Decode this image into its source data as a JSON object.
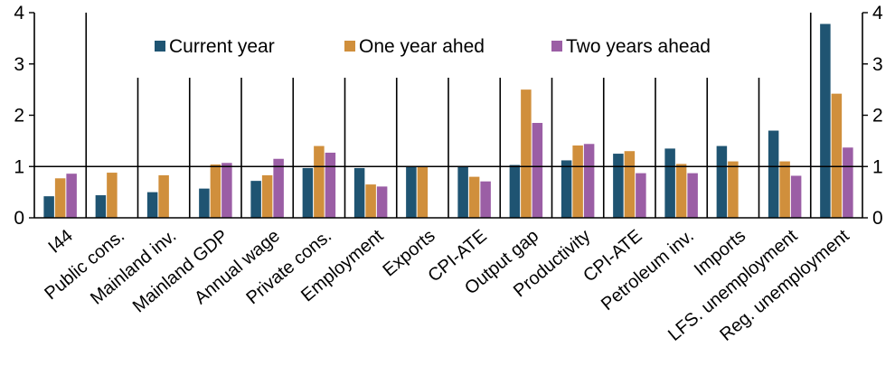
{
  "chart_data": {
    "type": "bar",
    "categories": [
      "I44",
      "Public cons.",
      "Mainland inv.",
      "Mainland GDP",
      "Annual wage",
      "Private cons.",
      "Employment",
      "Exports",
      "CPI-ATE",
      "Output gap",
      "Productivity",
      "CPI-ATE",
      "Petroleum inv.",
      "Imports",
      "LFS. unemployment",
      "Reg. unemployment"
    ],
    "series": [
      {
        "name": "Current year",
        "color": "#1f5472",
        "values": [
          0.42,
          0.44,
          0.5,
          0.57,
          0.72,
          0.97,
          0.97,
          1.0,
          1.0,
          1.03,
          1.12,
          1.25,
          1.35,
          1.4,
          1.7,
          3.78
        ]
      },
      {
        "name": "One year ahed",
        "color": "#d08f3c",
        "values": [
          0.77,
          0.88,
          0.83,
          1.04,
          0.83,
          1.4,
          0.65,
          1.0,
          0.8,
          2.5,
          1.41,
          1.3,
          1.05,
          1.1,
          1.1,
          2.42
        ]
      },
      {
        "name": "Two years ahead",
        "color": "#9b5ea5",
        "values": [
          0.86,
          null,
          null,
          1.07,
          1.15,
          1.27,
          0.61,
          null,
          0.71,
          1.85,
          1.44,
          0.87,
          0.87,
          null,
          0.82,
          1.37
        ]
      }
    ],
    "ylim": [
      0,
      4
    ],
    "yticks": [
      "0",
      "1",
      "2",
      "3",
      "4"
    ],
    "reference_line": 1,
    "legend_position": "top",
    "xlabel": "",
    "ylabel": ""
  }
}
